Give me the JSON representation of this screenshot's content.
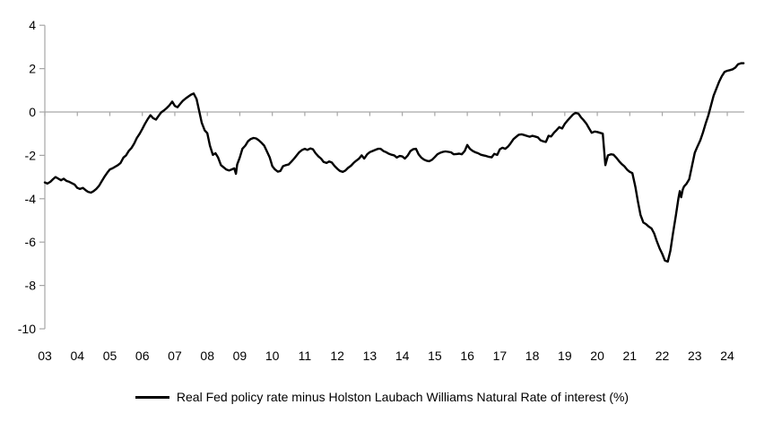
{
  "chart_data": {
    "type": "line",
    "title": "",
    "xlabel": "",
    "ylabel": "",
    "xlim": [
      2003,
      2024.58
    ],
    "ylim": [
      -10,
      4
    ],
    "grid": "zero-line-only",
    "legend_position": "bottom",
    "line_color": "#000000",
    "axis_color": "#A6A6A6",
    "y_ticks": [
      4,
      2,
      0,
      -2,
      -4,
      -6,
      -8,
      -10
    ],
    "x_ticks": [
      {
        "label": "03",
        "value": 2003
      },
      {
        "label": "04",
        "value": 2004
      },
      {
        "label": "05",
        "value": 2005
      },
      {
        "label": "06",
        "value": 2006
      },
      {
        "label": "07",
        "value": 2007
      },
      {
        "label": "08",
        "value": 2008
      },
      {
        "label": "09",
        "value": 2009
      },
      {
        "label": "10",
        "value": 2010
      },
      {
        "label": "11",
        "value": 2011
      },
      {
        "label": "12",
        "value": 2012
      },
      {
        "label": "13",
        "value": 2013
      },
      {
        "label": "14",
        "value": 2014
      },
      {
        "label": "15",
        "value": 2015
      },
      {
        "label": "16",
        "value": 2016
      },
      {
        "label": "17",
        "value": 2017
      },
      {
        "label": "18",
        "value": 2018
      },
      {
        "label": "19",
        "value": 2019
      },
      {
        "label": "20",
        "value": 2020
      },
      {
        "label": "21",
        "value": 2021
      },
      {
        "label": "22",
        "value": 2022
      },
      {
        "label": "23",
        "value": 2023
      },
      {
        "label": "24",
        "value": 2024
      }
    ],
    "series": [
      {
        "name": "Real Fed policy rate minus Holston Laubach Williams Natural Rate of interest (%)",
        "points": [
          [
            2003.0,
            -3.25
          ],
          [
            2003.08,
            -3.3
          ],
          [
            2003.17,
            -3.22
          ],
          [
            2003.25,
            -3.1
          ],
          [
            2003.33,
            -3.0
          ],
          [
            2003.42,
            -3.08
          ],
          [
            2003.5,
            -3.15
          ],
          [
            2003.58,
            -3.08
          ],
          [
            2003.67,
            -3.18
          ],
          [
            2003.75,
            -3.22
          ],
          [
            2003.83,
            -3.28
          ],
          [
            2003.92,
            -3.35
          ],
          [
            2004.0,
            -3.5
          ],
          [
            2004.08,
            -3.55
          ],
          [
            2004.17,
            -3.5
          ],
          [
            2004.25,
            -3.6
          ],
          [
            2004.33,
            -3.68
          ],
          [
            2004.42,
            -3.72
          ],
          [
            2004.5,
            -3.65
          ],
          [
            2004.58,
            -3.55
          ],
          [
            2004.67,
            -3.4
          ],
          [
            2004.75,
            -3.2
          ],
          [
            2004.83,
            -3.0
          ],
          [
            2004.92,
            -2.8
          ],
          [
            2005.0,
            -2.65
          ],
          [
            2005.08,
            -2.6
          ],
          [
            2005.17,
            -2.52
          ],
          [
            2005.25,
            -2.45
          ],
          [
            2005.33,
            -2.35
          ],
          [
            2005.42,
            -2.1
          ],
          [
            2005.5,
            -2.0
          ],
          [
            2005.58,
            -1.8
          ],
          [
            2005.67,
            -1.65
          ],
          [
            2005.75,
            -1.45
          ],
          [
            2005.83,
            -1.2
          ],
          [
            2005.92,
            -1.0
          ],
          [
            2006.0,
            -0.78
          ],
          [
            2006.08,
            -0.55
          ],
          [
            2006.17,
            -0.32
          ],
          [
            2006.25,
            -0.15
          ],
          [
            2006.33,
            -0.28
          ],
          [
            2006.42,
            -0.35
          ],
          [
            2006.5,
            -0.18
          ],
          [
            2006.58,
            -0.02
          ],
          [
            2006.67,
            0.08
          ],
          [
            2006.75,
            0.18
          ],
          [
            2006.83,
            0.3
          ],
          [
            2006.92,
            0.48
          ],
          [
            2007.0,
            0.28
          ],
          [
            2007.08,
            0.22
          ],
          [
            2007.17,
            0.38
          ],
          [
            2007.25,
            0.52
          ],
          [
            2007.33,
            0.62
          ],
          [
            2007.42,
            0.72
          ],
          [
            2007.5,
            0.8
          ],
          [
            2007.58,
            0.85
          ],
          [
            2007.67,
            0.6
          ],
          [
            2007.75,
            0.05
          ],
          [
            2007.83,
            -0.5
          ],
          [
            2007.92,
            -0.85
          ],
          [
            2008.0,
            -0.98
          ],
          [
            2008.08,
            -1.55
          ],
          [
            2008.17,
            -1.98
          ],
          [
            2008.25,
            -1.9
          ],
          [
            2008.33,
            -2.1
          ],
          [
            2008.42,
            -2.45
          ],
          [
            2008.5,
            -2.55
          ],
          [
            2008.58,
            -2.65
          ],
          [
            2008.67,
            -2.7
          ],
          [
            2008.75,
            -2.65
          ],
          [
            2008.83,
            -2.6
          ],
          [
            2008.88,
            -2.85
          ],
          [
            2008.92,
            -2.42
          ],
          [
            2009.0,
            -2.1
          ],
          [
            2009.08,
            -1.7
          ],
          [
            2009.17,
            -1.55
          ],
          [
            2009.25,
            -1.35
          ],
          [
            2009.33,
            -1.25
          ],
          [
            2009.42,
            -1.2
          ],
          [
            2009.5,
            -1.22
          ],
          [
            2009.58,
            -1.3
          ],
          [
            2009.67,
            -1.42
          ],
          [
            2009.75,
            -1.55
          ],
          [
            2009.83,
            -1.8
          ],
          [
            2009.92,
            -2.1
          ],
          [
            2010.0,
            -2.5
          ],
          [
            2010.08,
            -2.65
          ],
          [
            2010.17,
            -2.75
          ],
          [
            2010.25,
            -2.72
          ],
          [
            2010.33,
            -2.5
          ],
          [
            2010.42,
            -2.45
          ],
          [
            2010.5,
            -2.42
          ],
          [
            2010.58,
            -2.3
          ],
          [
            2010.67,
            -2.15
          ],
          [
            2010.75,
            -2.0
          ],
          [
            2010.83,
            -1.85
          ],
          [
            2010.92,
            -1.75
          ],
          [
            2011.0,
            -1.7
          ],
          [
            2011.08,
            -1.75
          ],
          [
            2011.17,
            -1.68
          ],
          [
            2011.25,
            -1.72
          ],
          [
            2011.33,
            -1.9
          ],
          [
            2011.42,
            -2.05
          ],
          [
            2011.5,
            -2.15
          ],
          [
            2011.58,
            -2.3
          ],
          [
            2011.67,
            -2.35
          ],
          [
            2011.75,
            -2.28
          ],
          [
            2011.83,
            -2.33
          ],
          [
            2011.92,
            -2.5
          ],
          [
            2012.0,
            -2.62
          ],
          [
            2012.08,
            -2.72
          ],
          [
            2012.17,
            -2.76
          ],
          [
            2012.25,
            -2.7
          ],
          [
            2012.33,
            -2.58
          ],
          [
            2012.42,
            -2.48
          ],
          [
            2012.5,
            -2.35
          ],
          [
            2012.58,
            -2.25
          ],
          [
            2012.67,
            -2.15
          ],
          [
            2012.75,
            -2.0
          ],
          [
            2012.83,
            -2.15
          ],
          [
            2012.92,
            -1.95
          ],
          [
            2013.0,
            -1.85
          ],
          [
            2013.08,
            -1.8
          ],
          [
            2013.17,
            -1.75
          ],
          [
            2013.25,
            -1.7
          ],
          [
            2013.33,
            -1.7
          ],
          [
            2013.42,
            -1.8
          ],
          [
            2013.5,
            -1.85
          ],
          [
            2013.58,
            -1.92
          ],
          [
            2013.67,
            -1.97
          ],
          [
            2013.75,
            -2.0
          ],
          [
            2013.83,
            -2.1
          ],
          [
            2013.92,
            -2.03
          ],
          [
            2014.0,
            -2.05
          ],
          [
            2014.08,
            -2.15
          ],
          [
            2014.17,
            -2.0
          ],
          [
            2014.25,
            -1.8
          ],
          [
            2014.33,
            -1.72
          ],
          [
            2014.42,
            -1.7
          ],
          [
            2014.5,
            -1.95
          ],
          [
            2014.58,
            -2.1
          ],
          [
            2014.67,
            -2.2
          ],
          [
            2014.75,
            -2.25
          ],
          [
            2014.83,
            -2.27
          ],
          [
            2014.92,
            -2.2
          ],
          [
            2015.0,
            -2.08
          ],
          [
            2015.08,
            -1.95
          ],
          [
            2015.17,
            -1.88
          ],
          [
            2015.25,
            -1.84
          ],
          [
            2015.33,
            -1.82
          ],
          [
            2015.42,
            -1.84
          ],
          [
            2015.5,
            -1.86
          ],
          [
            2015.58,
            -1.95
          ],
          [
            2015.67,
            -1.94
          ],
          [
            2015.75,
            -1.92
          ],
          [
            2015.83,
            -1.95
          ],
          [
            2015.92,
            -1.8
          ],
          [
            2016.0,
            -1.52
          ],
          [
            2016.08,
            -1.7
          ],
          [
            2016.17,
            -1.8
          ],
          [
            2016.25,
            -1.86
          ],
          [
            2016.33,
            -1.9
          ],
          [
            2016.42,
            -1.97
          ],
          [
            2016.5,
            -2.0
          ],
          [
            2016.58,
            -2.03
          ],
          [
            2016.67,
            -2.07
          ],
          [
            2016.75,
            -2.09
          ],
          [
            2016.83,
            -1.93
          ],
          [
            2016.92,
            -1.98
          ],
          [
            2017.0,
            -1.72
          ],
          [
            2017.08,
            -1.65
          ],
          [
            2017.17,
            -1.7
          ],
          [
            2017.25,
            -1.6
          ],
          [
            2017.33,
            -1.45
          ],
          [
            2017.42,
            -1.25
          ],
          [
            2017.5,
            -1.15
          ],
          [
            2017.58,
            -1.05
          ],
          [
            2017.67,
            -1.03
          ],
          [
            2017.75,
            -1.06
          ],
          [
            2017.83,
            -1.1
          ],
          [
            2017.92,
            -1.14
          ],
          [
            2018.0,
            -1.1
          ],
          [
            2018.08,
            -1.13
          ],
          [
            2018.17,
            -1.17
          ],
          [
            2018.25,
            -1.3
          ],
          [
            2018.33,
            -1.35
          ],
          [
            2018.42,
            -1.38
          ],
          [
            2018.5,
            -1.1
          ],
          [
            2018.58,
            -1.13
          ],
          [
            2018.67,
            -0.95
          ],
          [
            2018.75,
            -0.83
          ],
          [
            2018.83,
            -0.7
          ],
          [
            2018.92,
            -0.76
          ],
          [
            2019.0,
            -0.55
          ],
          [
            2019.08,
            -0.4
          ],
          [
            2019.17,
            -0.25
          ],
          [
            2019.25,
            -0.12
          ],
          [
            2019.33,
            -0.04
          ],
          [
            2019.42,
            -0.08
          ],
          [
            2019.5,
            -0.25
          ],
          [
            2019.58,
            -0.38
          ],
          [
            2019.67,
            -0.55
          ],
          [
            2019.75,
            -0.76
          ],
          [
            2019.83,
            -0.96
          ],
          [
            2019.92,
            -0.9
          ],
          [
            2020.0,
            -0.92
          ],
          [
            2020.08,
            -0.96
          ],
          [
            2020.17,
            -1.0
          ],
          [
            2020.25,
            -2.45
          ],
          [
            2020.33,
            -2.0
          ],
          [
            2020.42,
            -1.95
          ],
          [
            2020.5,
            -1.97
          ],
          [
            2020.58,
            -2.1
          ],
          [
            2020.67,
            -2.27
          ],
          [
            2020.75,
            -2.4
          ],
          [
            2020.83,
            -2.5
          ],
          [
            2020.92,
            -2.66
          ],
          [
            2021.0,
            -2.76
          ],
          [
            2021.08,
            -2.82
          ],
          [
            2021.17,
            -3.44
          ],
          [
            2021.25,
            -4.13
          ],
          [
            2021.33,
            -4.75
          ],
          [
            2021.42,
            -5.1
          ],
          [
            2021.5,
            -5.17
          ],
          [
            2021.58,
            -5.28
          ],
          [
            2021.67,
            -5.37
          ],
          [
            2021.75,
            -5.6
          ],
          [
            2021.83,
            -5.95
          ],
          [
            2021.92,
            -6.3
          ],
          [
            2022.0,
            -6.55
          ],
          [
            2022.08,
            -6.85
          ],
          [
            2022.17,
            -6.9
          ],
          [
            2022.25,
            -6.4
          ],
          [
            2022.33,
            -5.6
          ],
          [
            2022.42,
            -4.75
          ],
          [
            2022.5,
            -3.95
          ],
          [
            2022.54,
            -3.65
          ],
          [
            2022.58,
            -3.93
          ],
          [
            2022.63,
            -3.58
          ],
          [
            2022.67,
            -3.44
          ],
          [
            2022.75,
            -3.3
          ],
          [
            2022.83,
            -3.1
          ],
          [
            2022.92,
            -2.45
          ],
          [
            2023.0,
            -1.88
          ],
          [
            2023.08,
            -1.6
          ],
          [
            2023.17,
            -1.3
          ],
          [
            2023.25,
            -0.95
          ],
          [
            2023.33,
            -0.55
          ],
          [
            2023.42,
            -0.15
          ],
          [
            2023.5,
            0.3
          ],
          [
            2023.58,
            0.75
          ],
          [
            2023.67,
            1.1
          ],
          [
            2023.75,
            1.4
          ],
          [
            2023.83,
            1.65
          ],
          [
            2023.92,
            1.85
          ],
          [
            2024.0,
            1.9
          ],
          [
            2024.08,
            1.93
          ],
          [
            2024.17,
            1.97
          ],
          [
            2024.25,
            2.05
          ],
          [
            2024.33,
            2.2
          ],
          [
            2024.42,
            2.25
          ],
          [
            2024.5,
            2.25
          ]
        ]
      }
    ]
  },
  "legend": {
    "label": "Real Fed policy rate minus Holston Laubach Williams Natural Rate of interest (%)"
  }
}
